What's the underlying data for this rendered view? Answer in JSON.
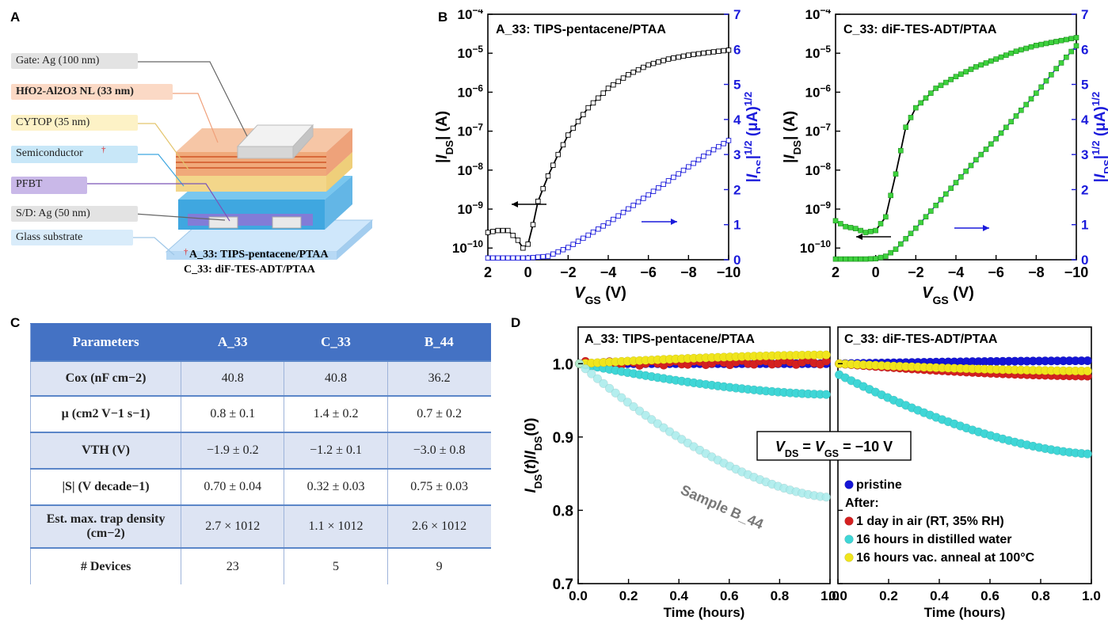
{
  "panels": {
    "A": "A",
    "B": "B",
    "C": "C",
    "D": "D"
  },
  "panel_a": {
    "layers": [
      "Gate: Ag (100 nm)",
      "HfO2-Al2O3 NL (33 nm)",
      "CYTOP (35 nm)",
      "Semiconductor",
      "PFBT",
      "S/D: Ag (50 nm)",
      "Glass substrate"
    ],
    "dagger": "†",
    "footnote_a": "A_33: TIPS-pentacene/PTAA",
    "footnote_c": "C_33: diF-TES-ADT/PTAA"
  },
  "panel_c": {
    "headers": [
      "Parameters",
      "A_33",
      "C_33",
      "B_44"
    ],
    "rows": [
      {
        "param": "Cox (nF cm−2)",
        "values": [
          "40.8",
          "40.8",
          "36.2"
        ]
      },
      {
        "param": "μ (cm2 V−1 s−1)",
        "values": [
          "0.8 ± 0.1",
          "1.4 ± 0.2",
          "0.7 ± 0.2"
        ]
      },
      {
        "param": "VTH (V)",
        "values": [
          "−1.9 ± 0.2",
          "−1.2 ± 0.1",
          "−3.0 ± 0.8"
        ]
      },
      {
        "param": "|S| (V decade−1)",
        "values": [
          "0.70 ± 0.04",
          "0.32 ± 0.03",
          "0.75 ± 0.03"
        ]
      },
      {
        "param": "Est. max. trap density (cm−2)",
        "values": [
          "2.7 × 1012",
          "1.1 × 1012",
          "2.6 × 1012"
        ]
      },
      {
        "param": "# Devices",
        "values": [
          "23",
          "5",
          "9"
        ]
      }
    ]
  },
  "chart_data": [
    {
      "type": "line",
      "title": "A_33: TIPS-pentacene/PTAA",
      "xlabel": "VGS (V)",
      "ylabel": "|IDS| (A)",
      "y2label": "|IDS|1/2 (μA)1/2",
      "xlim": [
        2,
        -10
      ],
      "ylim_log10": [
        -10.3,
        -4
      ],
      "y2lim": [
        0,
        7
      ],
      "x_ticks": [
        "2",
        "0",
        "−2",
        "−4",
        "−6",
        "−8",
        "−10"
      ],
      "y_ticks": [
        "10−4",
        "10−5",
        "10−6",
        "10−7",
        "10−8",
        "10−9",
        "10−10"
      ],
      "y2_ticks": [
        "0",
        "1",
        "2",
        "3",
        "4",
        "5",
        "6",
        "7"
      ],
      "series": [
        {
          "axis": "left",
          "color": "#000000",
          "marker": "open-square",
          "x": [
            2,
            1.5,
            1,
            0.5,
            0.25,
            0,
            -0.25,
            -0.5,
            -1,
            -1.5,
            -2,
            -3,
            -4,
            -5,
            -6,
            -7,
            -8,
            -9,
            -10
          ],
          "y_log10": [
            -9.6,
            -9.55,
            -9.55,
            -9.8,
            -10,
            -9.9,
            -9.4,
            -8.8,
            -8.15,
            -7.6,
            -7.1,
            -6.4,
            -5.9,
            -5.55,
            -5.3,
            -5.15,
            -5.05,
            -4.98,
            -4.92
          ]
        },
        {
          "axis": "right",
          "color": "#1a1adb",
          "marker": "open-square",
          "x": [
            2,
            1,
            0,
            -1,
            -2,
            -3,
            -4,
            -5,
            -6,
            -7,
            -8,
            -9,
            -10
          ],
          "y": [
            0.05,
            0.05,
            0.05,
            0.1,
            0.35,
            0.7,
            1.05,
            1.45,
            1.85,
            2.25,
            2.65,
            3.05,
            3.4
          ]
        }
      ]
    },
    {
      "type": "line",
      "title": "C_33: diF-TES-ADT/PTAA",
      "xlabel": "VGS (V)",
      "ylabel": "|IDS| (A)",
      "y2label": "|IDS|1/2 (μA)1/2",
      "xlim": [
        2,
        -10
      ],
      "ylim_log10": [
        -10.3,
        -4
      ],
      "y2lim": [
        0,
        7
      ],
      "x_ticks": [
        "2",
        "0",
        "−2",
        "−4",
        "−6",
        "−8",
        "−10"
      ],
      "y_ticks": [
        "10−4",
        "10−5",
        "10−6",
        "10−7",
        "10−8",
        "10−9",
        "10−10"
      ],
      "y2_ticks": [
        "0",
        "1",
        "2",
        "3",
        "4",
        "5",
        "6",
        "7"
      ],
      "series": [
        {
          "axis": "left",
          "color": "#000000",
          "marker": "green-square",
          "x": [
            2,
            1.5,
            1,
            0.5,
            0,
            -0.5,
            -1,
            -1.5,
            -2,
            -3,
            -4,
            -5,
            -6,
            -7,
            -8,
            -9,
            -10
          ],
          "y_log10": [
            -9.3,
            -9.45,
            -9.5,
            -9.6,
            -9.55,
            -9.2,
            -8.1,
            -6.9,
            -6.4,
            -5.9,
            -5.6,
            -5.35,
            -5.15,
            -4.95,
            -4.8,
            -4.7,
            -4.6
          ]
        },
        {
          "axis": "right",
          "color": "#1a1adb",
          "marker": "green-square",
          "x": [
            2,
            1,
            0.5,
            0,
            -0.5,
            -1,
            -2,
            -3,
            -4,
            -5,
            -6,
            -7,
            -8,
            -9,
            -10
          ],
          "y": [
            0.02,
            0.02,
            0.02,
            0.03,
            0.1,
            0.3,
            0.9,
            1.55,
            2.2,
            2.85,
            3.45,
            4.1,
            4.75,
            5.45,
            6.1
          ]
        }
      ]
    },
    {
      "type": "scatter",
      "title": "A_33: TIPS-pentacene/PTAA",
      "xlabel": "Time (hours)",
      "ylabel": "IDS(t)/IDS(0)",
      "xlim": [
        0,
        1
      ],
      "ylim": [
        0.7,
        1.05
      ],
      "x_ticks": [
        "0.0",
        "0.2",
        "0.4",
        "0.6",
        "0.8",
        "1.0"
      ],
      "y_ticks": [
        "0.7",
        "0.8",
        "0.9",
        "1.0"
      ],
      "annotation": "Sample B_44",
      "series": [
        {
          "name": "pristine",
          "color": "#1515d6",
          "trend": [
            1.0,
            1.0
          ]
        },
        {
          "name": "1 day in air (RT, 35% RH)",
          "color": "#d42020",
          "trend": [
            1.0,
            1.002
          ]
        },
        {
          "name": "16 hours in distilled water",
          "color": "#3fd6d6",
          "trend": [
            1.0,
            0.958
          ]
        },
        {
          "name": "16 hours vac. anneal at 100°C",
          "color": "#f0e51c",
          "trend": [
            1.0,
            1.012
          ]
        },
        {
          "name": "Sample B_44",
          "color": "#a8ecec",
          "trend": [
            1.0,
            0.818
          ]
        }
      ]
    },
    {
      "type": "scatter",
      "title": "C_33: diF-TES-ADT/PTAA",
      "xlabel": "Time (hours)",
      "ylabel": "IDS(t)/IDS(0)",
      "xlim": [
        0,
        1
      ],
      "ylim": [
        0.7,
        1.05
      ],
      "x_ticks": [
        "0.0",
        "0.2",
        "0.4",
        "0.6",
        "0.8",
        "1.0"
      ],
      "y_ticks": [
        "0.7",
        "0.8",
        "0.9",
        "1.0"
      ],
      "annotation": "VDS = VGS = −10 V",
      "series": [
        {
          "name": "pristine",
          "color": "#1515d6",
          "trend": [
            1.0,
            1.004
          ]
        },
        {
          "name": "1 day in air (RT, 35% RH)",
          "color": "#d42020",
          "trend": [
            1.0,
            0.983
          ]
        },
        {
          "name": "16 hours in distilled water",
          "color": "#3fd6d6",
          "trend": [
            0.985,
            0.877
          ]
        },
        {
          "name": "16 hours vac. anneal at 100°C",
          "color": "#f0e51c",
          "trend": [
            1.0,
            0.99
          ]
        }
      ]
    }
  ],
  "legend_d": {
    "after": "After:"
  },
  "colors": {
    "accent_table": "#4472c4",
    "blue_axis": "#1a1adb",
    "green_marker": "#3dd23d"
  }
}
